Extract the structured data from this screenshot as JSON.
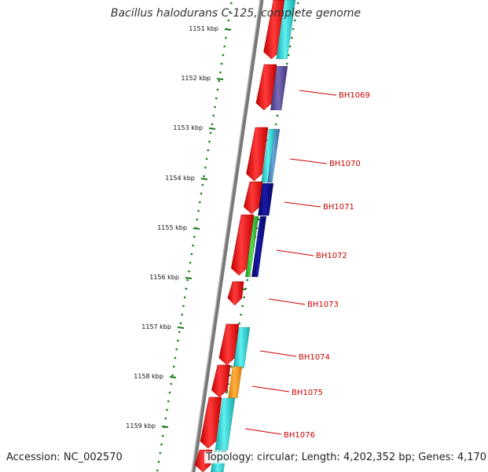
{
  "title": "Bacillus halodurans C-125, complete genome",
  "footer": {
    "accession": "Accession: NC_002570",
    "summary": "Topology: circular; Length: 4,202,352 bp; Genes: 4,170"
  },
  "ticks": [
    "1151 kbp",
    "1152 kbp",
    "1153 kbp",
    "1154 kbp",
    "1155 kbp",
    "1156 kbp",
    "1157 kbp",
    "1158 kbp",
    "1159 kbp"
  ],
  "genes": [
    {
      "label": "BH1069",
      "color": "#cc0000"
    },
    {
      "label": "BH1070",
      "color": "#cc0000"
    },
    {
      "label": "BH1071",
      "color": "#cc0000"
    },
    {
      "label": "BH1072",
      "color": "#cc0000"
    },
    {
      "label": "BH1073",
      "color": "#cc0000"
    },
    {
      "label": "BH1074",
      "color": "#cc0000"
    },
    {
      "label": "BH1075",
      "color": "#cc0000"
    },
    {
      "label": "BH1076",
      "color": "#cc0000"
    }
  ],
  "colors": {
    "backbone": "#8c8c8c",
    "cds": "#ee1111",
    "cog_cyan": "#22cccc",
    "cog_purple": "#5a4a9a",
    "cog_navy": "#0a0a80",
    "cog_steel": "#4a8ac0",
    "cog_green": "#33bb33",
    "cog_orange": "#ff9900",
    "ticks": "#1a7a1a",
    "label_line": "#cc0000"
  }
}
